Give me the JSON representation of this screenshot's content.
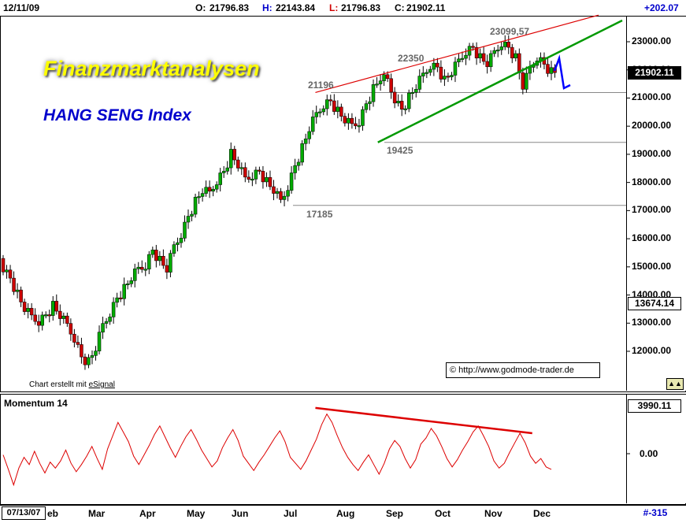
{
  "header": {
    "date": "12/11/09",
    "open_label": "O:",
    "open": "21796.83",
    "high_label": "H:",
    "high": "22143.84",
    "low_label": "L:",
    "low": "21796.83",
    "close_label": "C:",
    "close": "21902.11",
    "change": "+202.07"
  },
  "titles": {
    "main": "Finanzmarktanalysen",
    "sub": "HANG SENG Index"
  },
  "annotations": {
    "p21196": "21196",
    "p22350": "22350",
    "p23099": "23099,57",
    "p19425": "19425",
    "p17185": "17185"
  },
  "credit": {
    "prefix": "Chart erstellt mit ",
    "link": "eSignal"
  },
  "copyright": "© http://www.godmode-trader.de",
  "price_axis": {
    "ticks": [
      "23000.00",
      "22000.00",
      "21000.00",
      "20000.00",
      "19000.00",
      "18000.00",
      "17000.00",
      "16000.00",
      "15000.00",
      "14000.00",
      "13000.00",
      "12000.00"
    ],
    "last_price": "21902.11",
    "marker": "13674.14"
  },
  "momentum": {
    "title": "Momentum 14",
    "upper": "3990.11",
    "zero": "0.00"
  },
  "time_axis": {
    "start_date": "07/13/07",
    "months": [
      "eb",
      "Mar",
      "Apr",
      "May",
      "Jun",
      "Jul",
      "Aug",
      "Sep",
      "Oct",
      "Nov",
      "Dec"
    ],
    "corner": "#-315"
  },
  "colors": {
    "up": "#00aa00",
    "down": "#cc0000",
    "resistance": "#dd0000",
    "support": "#009900",
    "forecast": "#0000ff",
    "momentum": "#dd0000"
  },
  "chart_data": [
    {
      "type": "candlestick",
      "title": "HANG SENG Index",
      "ylim": [
        11000,
        23900
      ],
      "x_range": [
        "2009-01-29",
        "2009-12-11"
      ],
      "ohlc_last": {
        "open": 21796.83,
        "high": 22143.84,
        "low": 21796.83,
        "close": 21902.11
      },
      "key_points": [
        {
          "date": "2009-03-09",
          "value": 11345,
          "label": ""
        },
        {
          "date": "2009-07-28",
          "value": 21196,
          "label": "21196"
        },
        {
          "date": "2009-07-13",
          "value": 17185,
          "label": "17185"
        },
        {
          "date": "2009-09-02",
          "value": 19425,
          "label": "19425"
        },
        {
          "date": "2009-09-15",
          "value": 22350,
          "label": "22350"
        },
        {
          "date": "2009-11-18",
          "value": 23099.57,
          "label": "23099,57"
        },
        {
          "date": "2009-12-11",
          "value": 21902.11,
          "label": ""
        }
      ],
      "closes": [
        15000,
        14600,
        14000,
        13500,
        13200,
        13100,
        13300,
        13600,
        13250,
        12900,
        12500,
        11800,
        11600,
        12100,
        12900,
        13400,
        13900,
        14200,
        14600,
        14900,
        15100,
        15600,
        15200,
        14900,
        15700,
        16200,
        16800,
        17300,
        17700,
        17600,
        18100,
        18400,
        19000,
        18600,
        18100,
        18300,
        18400,
        18000,
        17700,
        17300,
        17900,
        18600,
        19200,
        19900,
        20400,
        20800,
        20900,
        20500,
        20200,
        20000,
        20200,
        20800,
        21300,
        21700,
        21600,
        21000,
        20600,
        21000,
        21400,
        21800,
        22200,
        22100,
        21600,
        21900,
        22300,
        22700,
        22800,
        22400,
        22200,
        22600,
        23000,
        22800,
        22400,
        21400,
        22000,
        22500,
        22200,
        21902
      ],
      "horizontal_levels": [
        21196,
        19425,
        17185
      ],
      "resistance_line": [
        {
          "date": "2009-07-28",
          "value": 21196
        },
        {
          "date": "2009-11-18",
          "value": 23099.57
        }
      ],
      "support_line": [
        {
          "date": "2009-09-02",
          "value": 19425
        },
        {
          "date": "2009-11-02",
          "value": 21300
        }
      ]
    },
    {
      "type": "line",
      "title": "Momentum 14",
      "ylim": [
        -3000,
        4800
      ],
      "values": [
        -100,
        -1300,
        -2600,
        -1200,
        -300,
        -900,
        200,
        -800,
        -1600,
        -700,
        -1200,
        -600,
        300,
        -800,
        -1500,
        -900,
        -200,
        600,
        -400,
        -1300,
        400,
        1500,
        2600,
        1800,
        1000,
        -200,
        -900,
        -100,
        700,
        1600,
        2300,
        1400,
        500,
        -300,
        600,
        1400,
        2000,
        1200,
        300,
        -400,
        -1100,
        -600,
        500,
        1300,
        2000,
        1100,
        -200,
        -800,
        -1400,
        -700,
        -100,
        600,
        1300,
        1900,
        1000,
        -300,
        -800,
        -1300,
        -600,
        300,
        1200,
        2400,
        3300,
        2600,
        1500,
        500,
        -300,
        -900,
        -1400,
        -700,
        -100,
        -900,
        -1700,
        -800,
        400,
        1100,
        600,
        -400,
        -1200,
        -500,
        800,
        1300,
        2100,
        1500,
        600,
        -400,
        -1100,
        -500,
        300,
        1000,
        1800,
        2300,
        1500,
        600,
        -600,
        -1200,
        -800,
        100,
        900,
        1700,
        900,
        -200,
        -800,
        -400,
        -1100,
        -1300
      ],
      "trendline": [
        {
          "date": "2009-07-28",
          "value": 3800
        },
        {
          "date": "2009-11-30",
          "value": 1700
        }
      ]
    }
  ]
}
